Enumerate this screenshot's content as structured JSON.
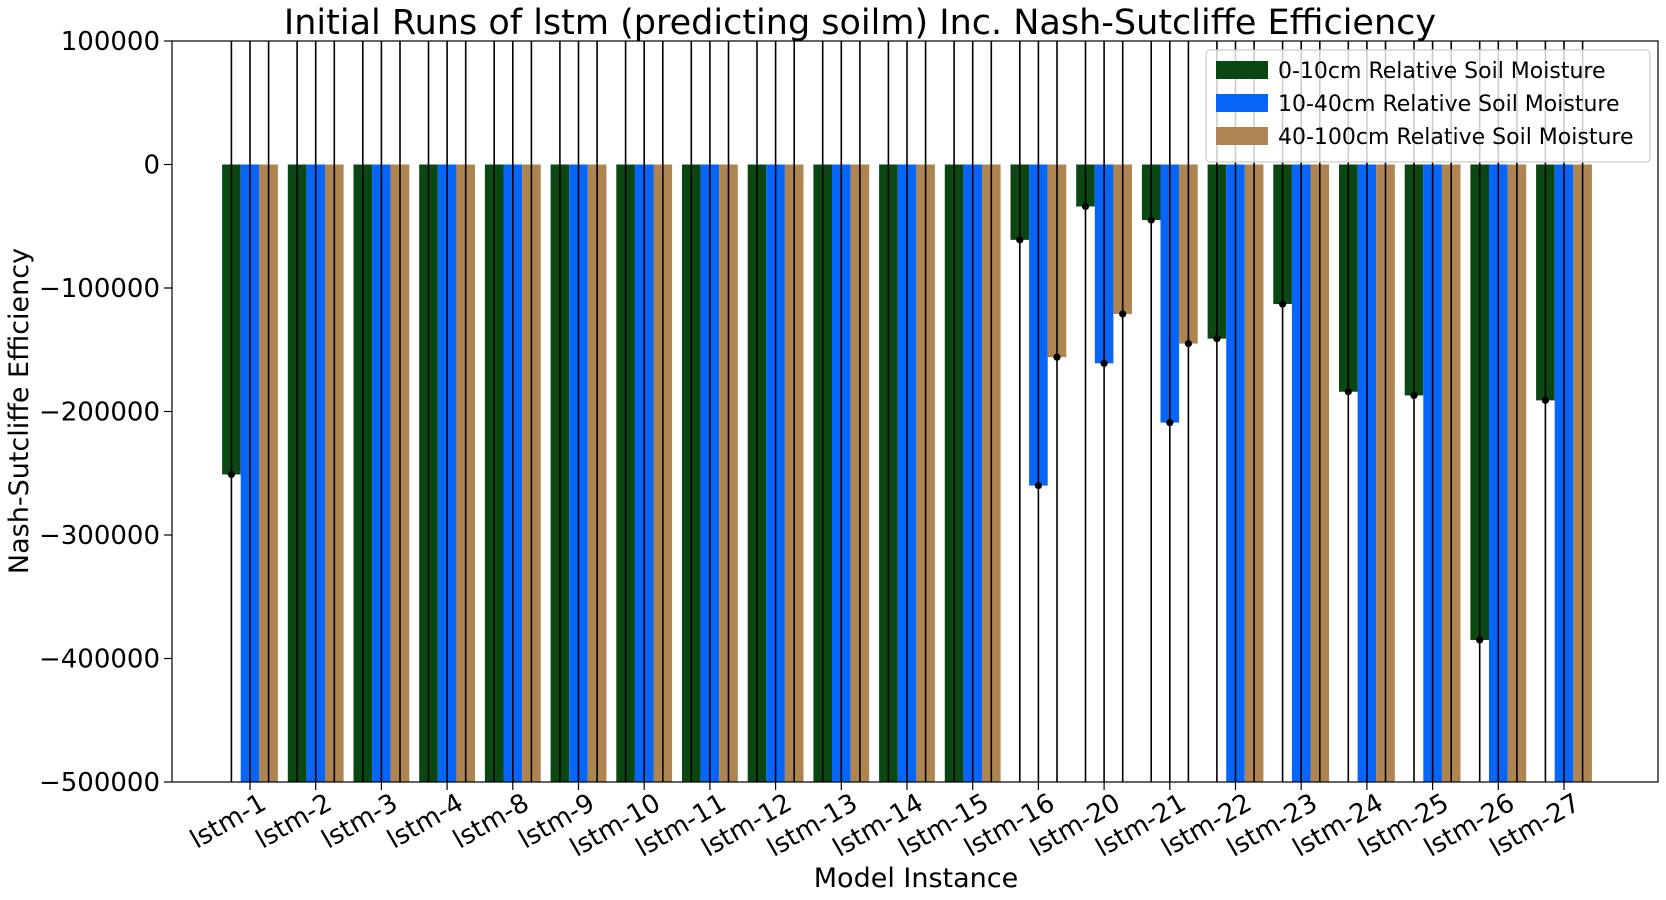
{
  "chart_data": {
    "type": "bar",
    "title": "Initial Runs of lstm (predicting soilm) Inc. Nash-Sutcliffe Efficiency",
    "xlabel": "Model Instance",
    "ylabel": "Nash-Sutcliffe Efficiency",
    "ylim": [
      -500000,
      100000
    ],
    "yticks": [
      "100000",
      "0",
      "−100000",
      "−200000",
      "−300000",
      "−400000",
      "−500000"
    ],
    "ytick_values": [
      100000,
      0,
      -100000,
      -200000,
      -300000,
      -400000,
      -500000
    ],
    "categories": [
      "lstm-1",
      "lstm-2",
      "lstm-3",
      "lstm-4",
      "lstm-8",
      "lstm-9",
      "lstm-10",
      "lstm-11",
      "lstm-12",
      "lstm-13",
      "lstm-14",
      "lstm-15",
      "lstm-16",
      "lstm-20",
      "lstm-21",
      "lstm-22",
      "lstm-23",
      "lstm-24",
      "lstm-25",
      "lstm-26",
      "lstm-27"
    ],
    "legend_position": "top-right",
    "grid": false,
    "series": [
      {
        "name": "0-10cm Relative Soil Moisture",
        "color": "#0b4712",
        "values": [
          -251000,
          -500000,
          -500000,
          -500000,
          -500000,
          -500000,
          -500000,
          -500000,
          -500000,
          -500000,
          -500000,
          -500000,
          -61000,
          -34000,
          -45000,
          -141000,
          -113000,
          -184000,
          -187000,
          -385000,
          -191000
        ]
      },
      {
        "name": "10-40cm Relative Soil Moisture",
        "color": "#0765fa",
        "values": [
          -500000,
          -500000,
          -500000,
          -500000,
          -500000,
          -500000,
          -500000,
          -500000,
          -500000,
          -500000,
          -500000,
          -500000,
          -260000,
          -161000,
          -209000,
          -500000,
          -500000,
          -500000,
          -500000,
          -500000,
          -500000
        ]
      },
      {
        "name": "40-100cm Relative Soil Moisture",
        "color": "#ae8450",
        "values": [
          -500000,
          -500000,
          -500000,
          -500000,
          -500000,
          -500000,
          -500000,
          -500000,
          -500000,
          -500000,
          -500000,
          -500000,
          -156000,
          -121000,
          -145000,
          -500000,
          -500000,
          -500000,
          -500000,
          -500000,
          -500000
        ]
      }
    ]
  }
}
